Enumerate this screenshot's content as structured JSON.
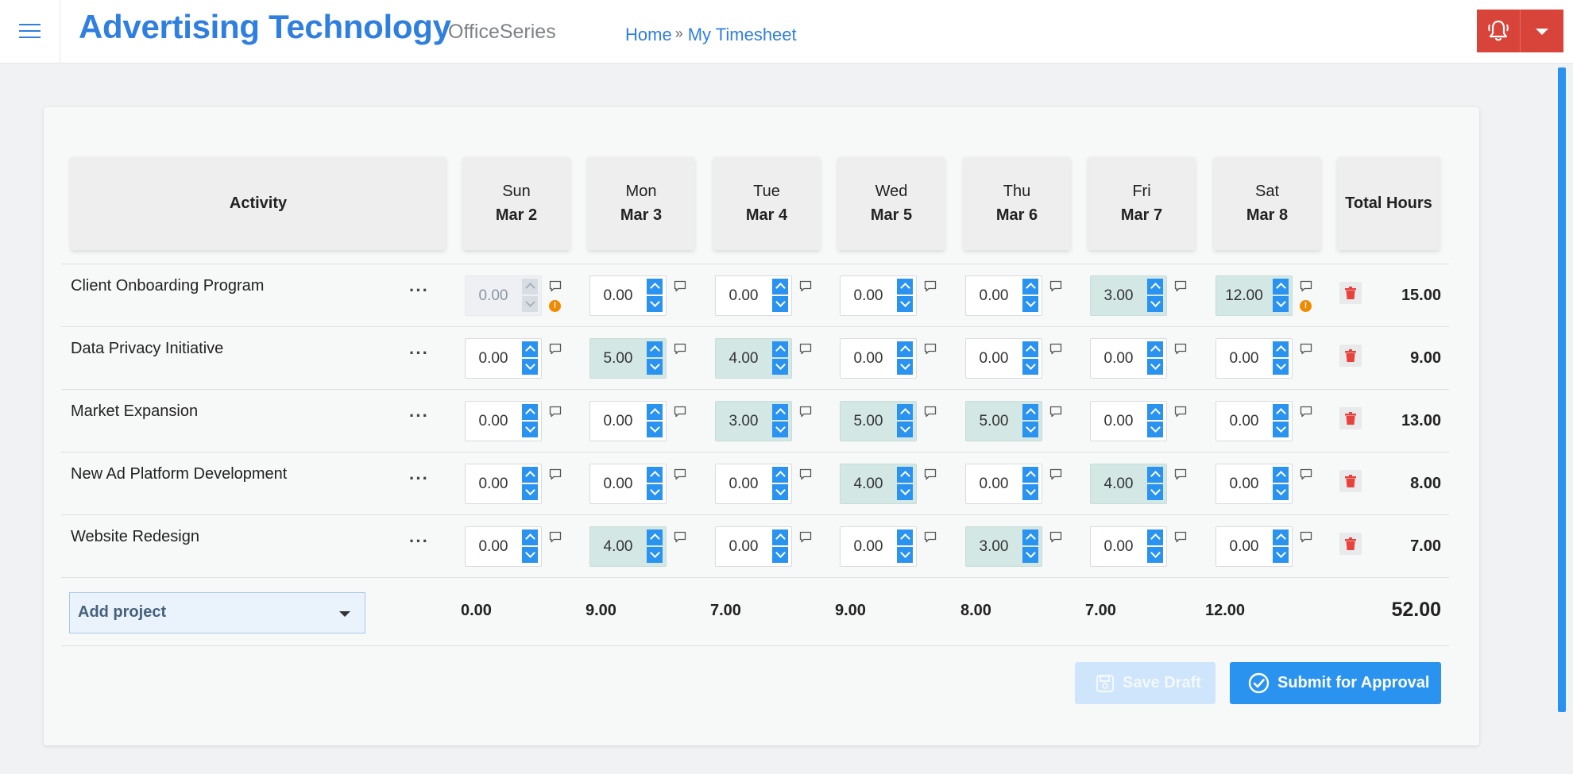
{
  "header": {
    "brand": "Advertising Technology",
    "suite": "OfficeSeries",
    "breadcrumb": [
      "Home",
      "My Timesheet"
    ],
    "breadcrumb_separator": "»",
    "menu_icon": "hamburger-icon",
    "alert_icon": "bell-alert-icon",
    "dropdown_icon": "caret-down-icon",
    "accent_color": "#2f7fe0",
    "alert_color": "#d9443a"
  },
  "table": {
    "activity_header": "Activity",
    "total_header": "Total Hours",
    "days": [
      {
        "dow": "Sun",
        "date": "Mar 2"
      },
      {
        "dow": "Mon",
        "date": "Mar 3"
      },
      {
        "dow": "Tue",
        "date": "Mar 4"
      },
      {
        "dow": "Wed",
        "date": "Mar 5"
      },
      {
        "dow": "Thu",
        "date": "Mar 6"
      },
      {
        "dow": "Fri",
        "date": "Mar 7"
      },
      {
        "dow": "Sat",
        "date": "Mar 8"
      }
    ],
    "more_label": "···",
    "rows": [
      {
        "name": "Client Onboarding Program",
        "hours": [
          "0.00",
          "0.00",
          "0.00",
          "0.00",
          "0.00",
          "3.00",
          "12.00"
        ],
        "total": "15.00"
      },
      {
        "name": "Data Privacy Initiative",
        "hours": [
          "0.00",
          "5.00",
          "4.00",
          "0.00",
          "0.00",
          "0.00",
          "0.00"
        ],
        "total": "9.00"
      },
      {
        "name": "Market Expansion",
        "hours": [
          "0.00",
          "0.00",
          "3.00",
          "5.00",
          "5.00",
          "0.00",
          "0.00"
        ],
        "total": "13.00"
      },
      {
        "name": "New Ad Platform Development",
        "hours": [
          "0.00",
          "0.00",
          "0.00",
          "4.00",
          "0.00",
          "4.00",
          "0.00"
        ],
        "total": "8.00"
      },
      {
        "name": "Website Redesign",
        "hours": [
          "0.00",
          "4.00",
          "0.00",
          "0.00",
          "3.00",
          "0.00",
          "0.00"
        ],
        "total": "7.00"
      }
    ],
    "day_totals": [
      "0.00",
      "9.00",
      "7.00",
      "9.00",
      "8.00",
      "7.00",
      "12.00"
    ],
    "grand_total": "52.00",
    "info_badge": "!",
    "highlight_color": "#d3e7e4"
  },
  "footer": {
    "add_project_label": "Add project",
    "save_draft_label": "Save Draft",
    "submit_label": "Submit for Approval",
    "save_icon": "floppy-disk-icon",
    "submit_icon": "check-circle-icon"
  }
}
